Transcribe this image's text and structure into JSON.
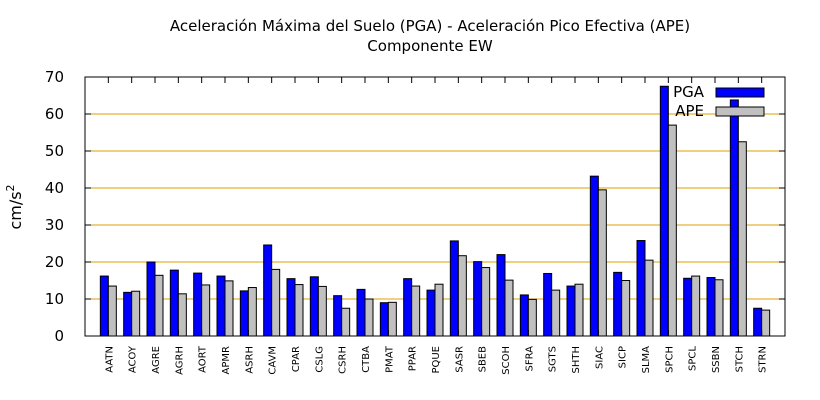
{
  "chart_data": {
    "type": "bar",
    "title": "Aceleración Máxima del Suelo (PGA) -  Aceleración Pico Efectiva (APE)",
    "subtitle": "Componente EW",
    "ylabel_base": "cm/s",
    "ylabel_sup": "2",
    "xlabel": "",
    "ylim": [
      0,
      70
    ],
    "yticks": [
      0,
      10,
      20,
      30,
      40,
      50,
      60,
      70
    ],
    "grid": "horizontal",
    "legend_position": "top-right",
    "categories": [
      "AATN",
      "ACOY",
      "AGRE",
      "AGRH",
      "AORT",
      "APMR",
      "ASRH",
      "CAVM",
      "CPAR",
      "CSLG",
      "CSRH",
      "CTBA",
      "PMAT",
      "PPAR",
      "PQUE",
      "SASR",
      "SBEB",
      "SCOH",
      "SFRA",
      "SGTS",
      "SHTH",
      "SIAC",
      "SICP",
      "SLMA",
      "SPCH",
      "SPCL",
      "SSBN",
      "STCH",
      "STRN"
    ],
    "series": [
      {
        "name": "PGA",
        "color": "#0000ff",
        "values": [
          16.2,
          11.8,
          20,
          17.8,
          17,
          16.2,
          12.2,
          24.6,
          15.5,
          16,
          10.9,
          12.6,
          9,
          15.5,
          12.4,
          25.7,
          20.1,
          22,
          11.1,
          16.9,
          13.5,
          43.2,
          17.2,
          25.8,
          67.5,
          15.6,
          15.8,
          63.8,
          7.5
        ]
      },
      {
        "name": "APE",
        "color": "#c0c0c0",
        "values": [
          13.5,
          12.1,
          16.4,
          11.4,
          13.8,
          14.9,
          13.1,
          18,
          13.9,
          13.4,
          7.5,
          10,
          9.1,
          13.5,
          14,
          21.7,
          18.5,
          15.1,
          9.9,
          12.4,
          14,
          39.5,
          15,
          20.5,
          57,
          16.2,
          15.2,
          52.5,
          7
        ]
      }
    ]
  }
}
